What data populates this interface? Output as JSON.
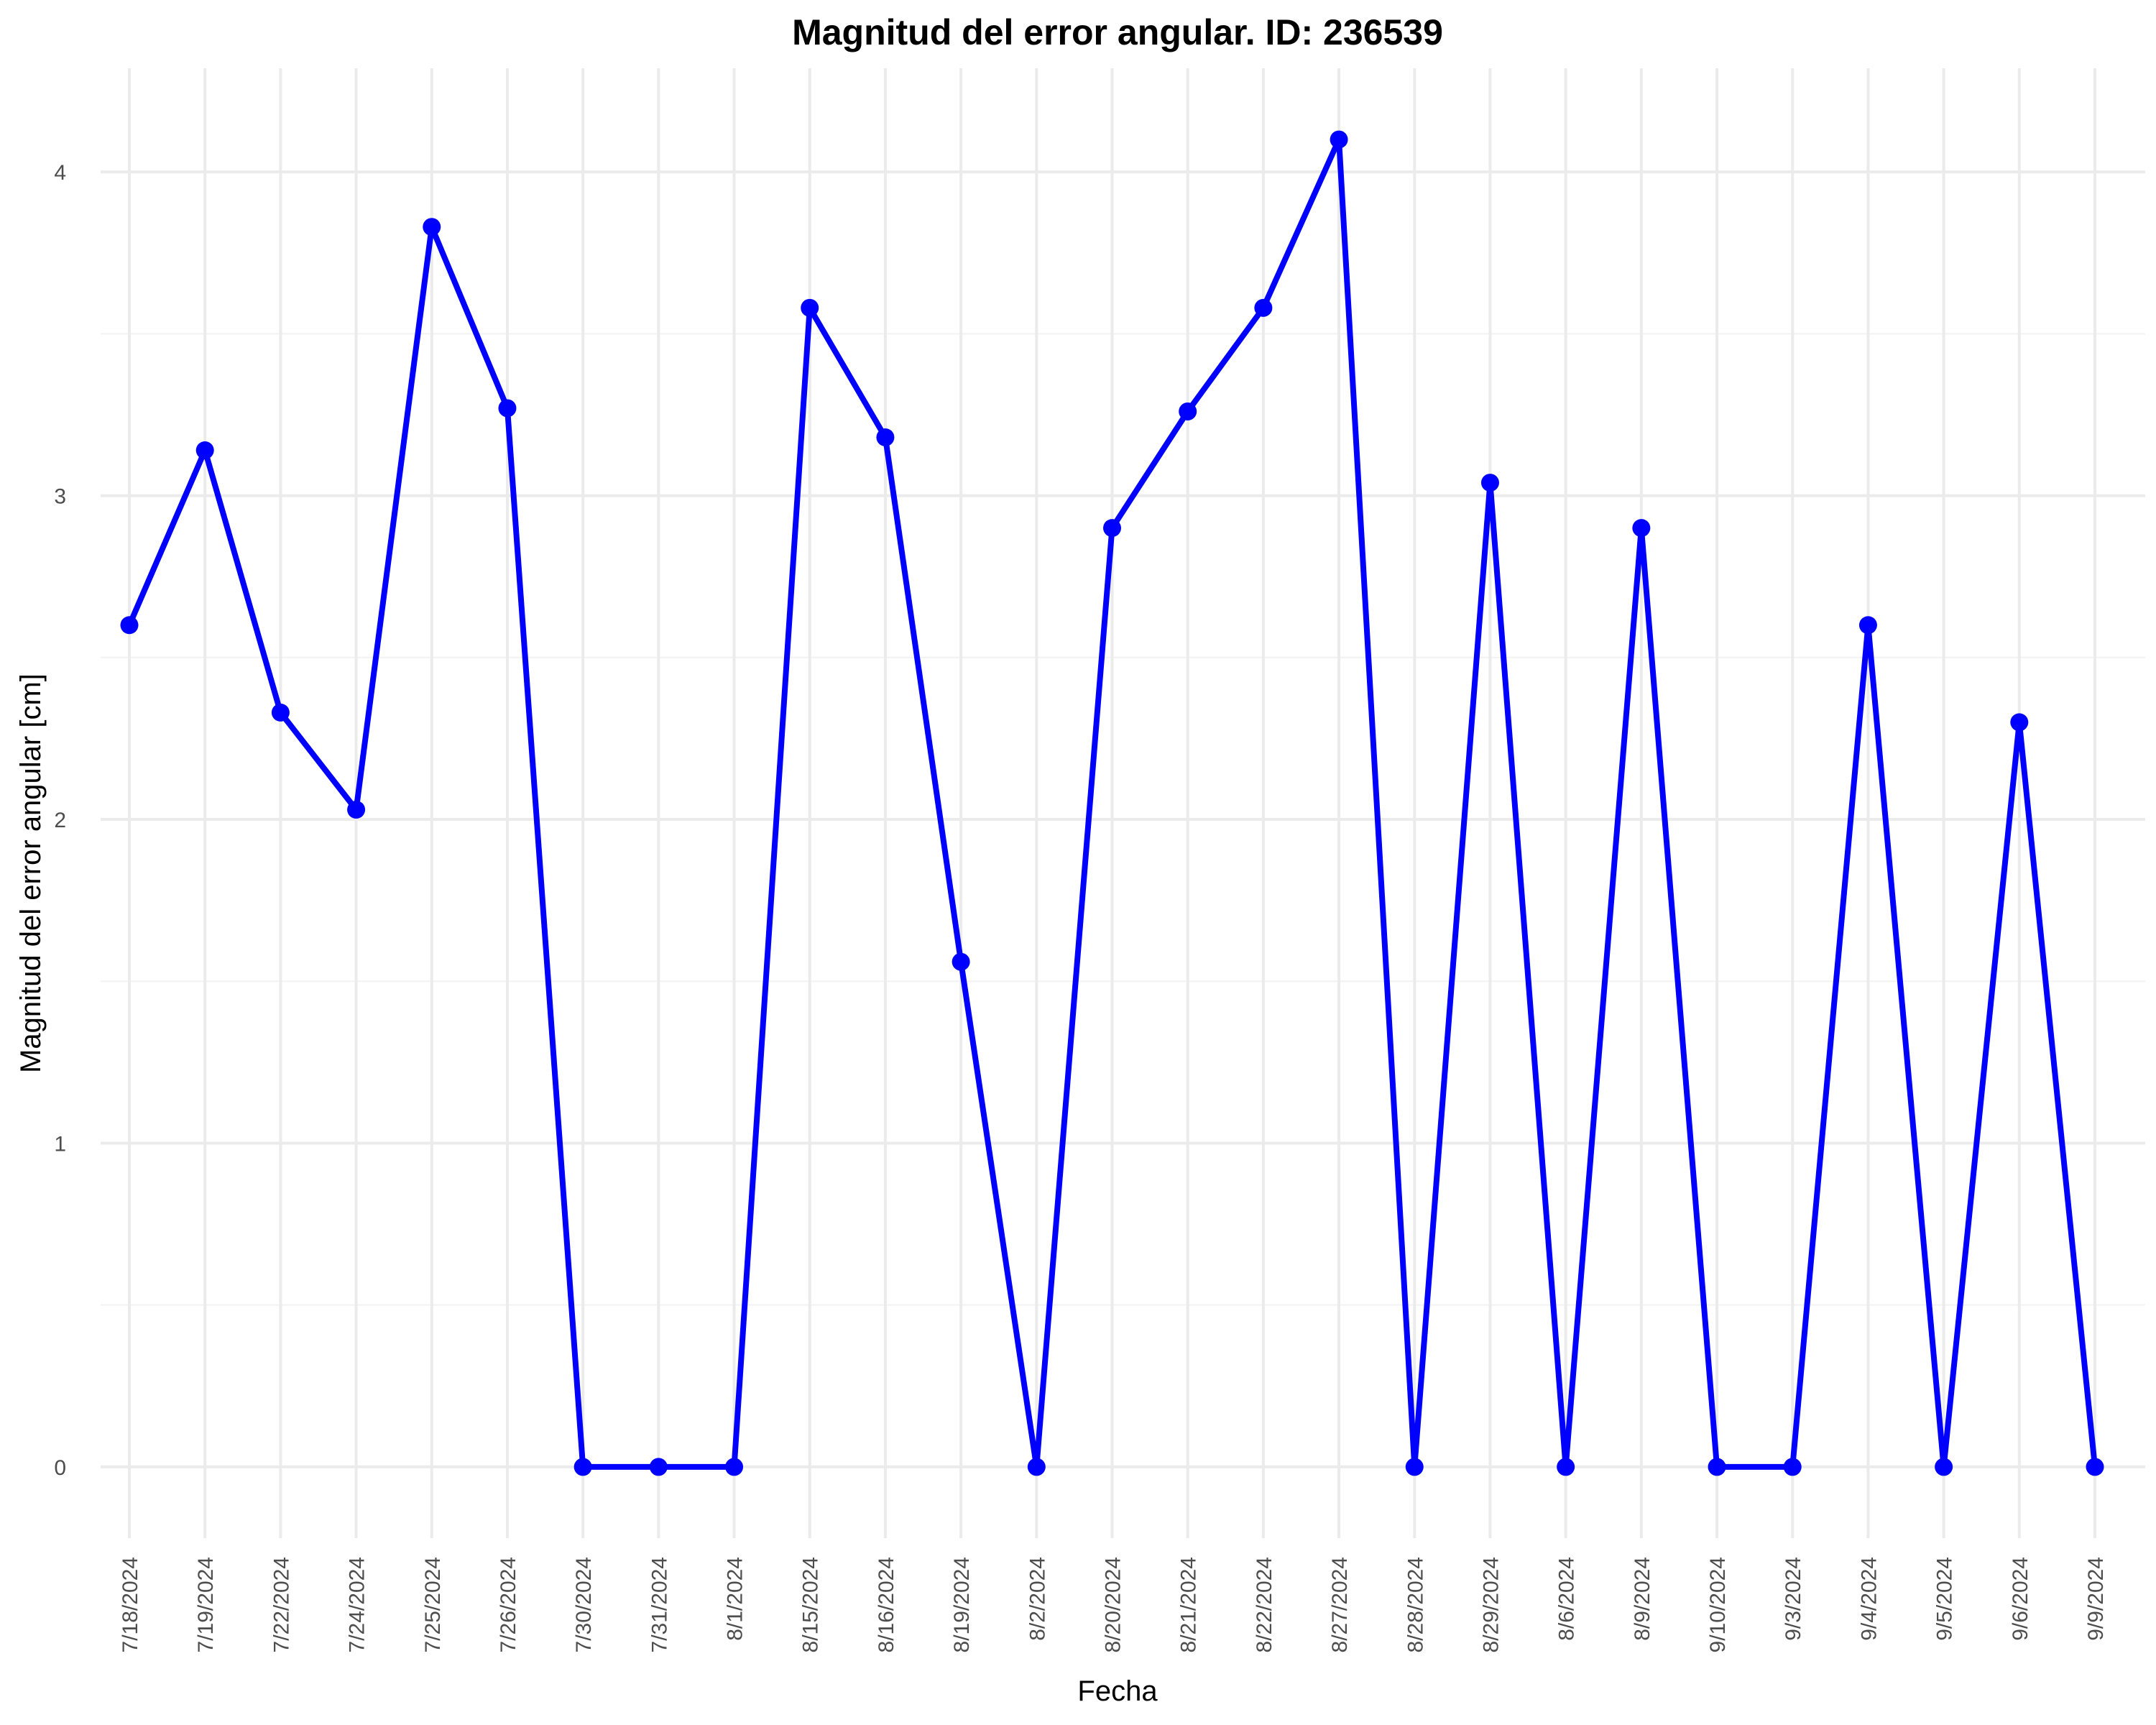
{
  "chart_data": {
    "type": "line",
    "title": "Magnitud del error angular. ID: 236539",
    "xlabel": "Fecha",
    "ylabel": "Magnitud del error angular [cm]",
    "ylim": [
      -0.22,
      4.32
    ],
    "yticks": [
      "0",
      "1",
      "2",
      "3",
      "4"
    ],
    "grid": true,
    "line_color": "#0000FF",
    "categories": [
      "7/18/2024",
      "7/19/2024",
      "7/22/2024",
      "7/24/2024",
      "7/25/2024",
      "7/26/2024",
      "7/30/2024",
      "7/31/2024",
      "8/1/2024",
      "8/15/2024",
      "8/16/2024",
      "8/19/2024",
      "8/2/2024",
      "8/20/2024",
      "8/21/2024",
      "8/22/2024",
      "8/27/2024",
      "8/28/2024",
      "8/29/2024",
      "8/6/2024",
      "8/9/2024",
      "9/10/2024",
      "9/3/2024",
      "9/4/2024",
      "9/5/2024",
      "9/6/2024",
      "9/9/2024"
    ],
    "values": [
      2.6,
      3.14,
      2.33,
      2.03,
      3.83,
      3.27,
      0,
      0,
      0,
      3.58,
      3.18,
      1.56,
      0,
      2.9,
      3.26,
      3.58,
      4.1,
      0,
      3.04,
      0,
      2.9,
      0,
      0,
      2.6,
      0,
      2.3,
      0
    ]
  }
}
